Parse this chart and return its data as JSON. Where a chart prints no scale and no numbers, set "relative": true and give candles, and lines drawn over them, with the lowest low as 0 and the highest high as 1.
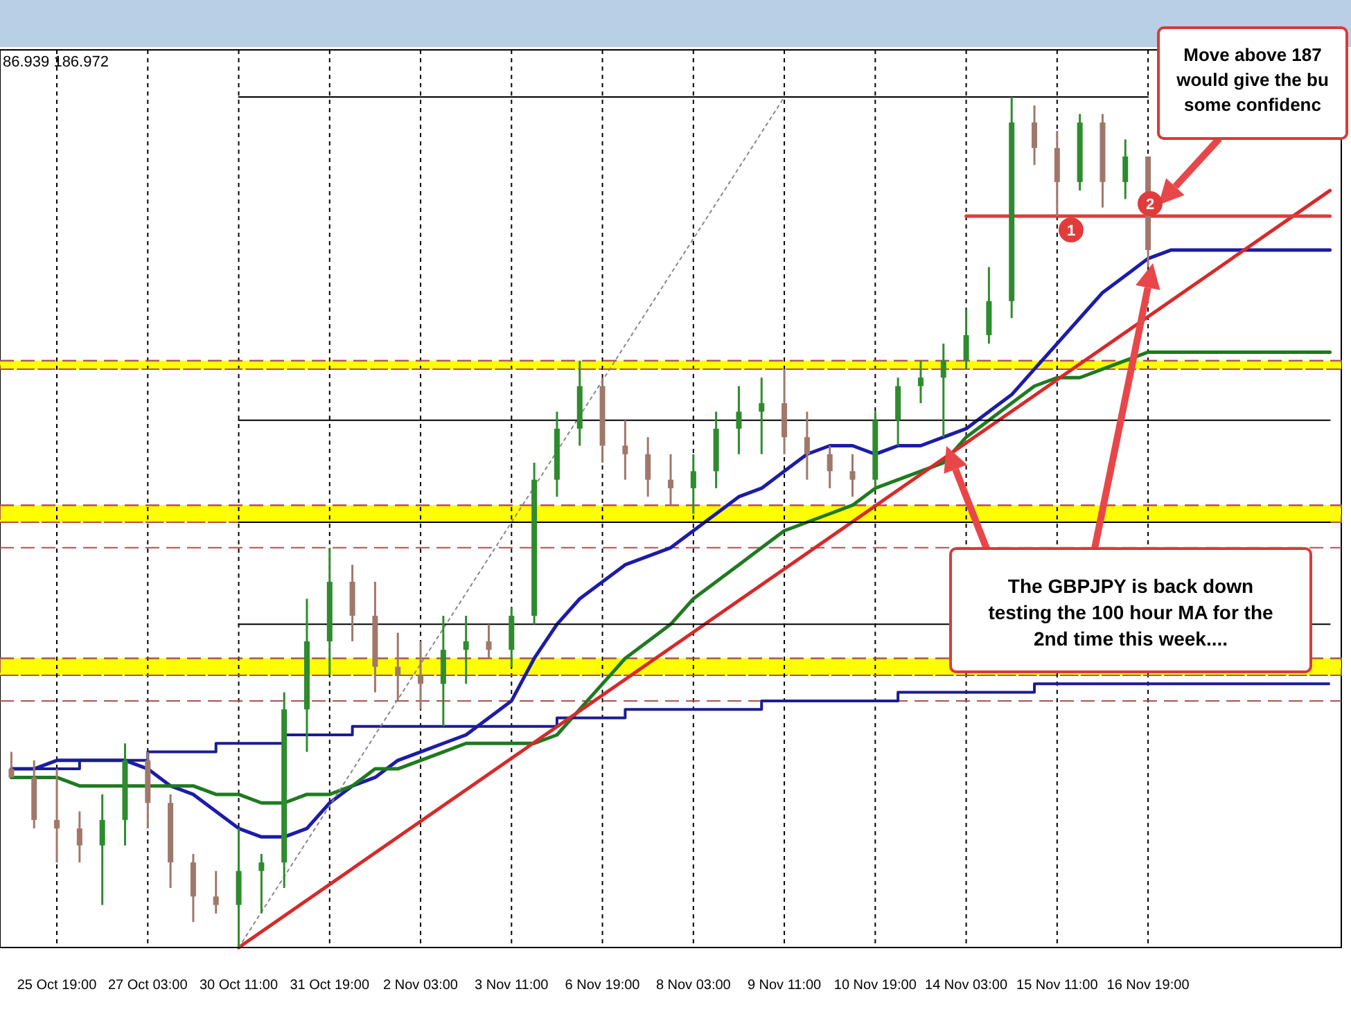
{
  "chart_data": {
    "type": "candlestick",
    "relative": true,
    "grid": "x",
    "categories": [
      null,
      null,
      "25 Oct 19:00",
      null,
      null,
      null,
      "27 Oct 03:00",
      null,
      null,
      null,
      "30 Oct 11:00",
      null,
      null,
      null,
      "31 Oct 19:00",
      null,
      null,
      null,
      "2 Nov 03:00",
      null,
      null,
      null,
      "3 Nov 11:00",
      null,
      null,
      null,
      "6 Nov 19:00",
      null,
      null,
      null,
      "8 Nov 03:00",
      null,
      null,
      null,
      "9 Nov 11:00",
      null,
      null,
      null,
      "10 Nov 19:00",
      null,
      null,
      null,
      "14 Nov 03:00",
      null,
      null,
      null,
      "15 Nov 11:00",
      null,
      null,
      null,
      "16 Nov 19:00",
      null,
      null,
      null,
      null,
      null,
      null,
      null,
      null
    ],
    "ohlc": [
      [
        0.21,
        0.23,
        0.2,
        0.2
      ],
      [
        0.2,
        0.22,
        0.14,
        0.15
      ],
      [
        0.15,
        0.21,
        0.1,
        0.14
      ],
      [
        0.14,
        0.16,
        0.1,
        0.12
      ],
      [
        0.12,
        0.18,
        0.05,
        0.15
      ],
      [
        0.15,
        0.24,
        0.12,
        0.22
      ],
      [
        0.22,
        0.23,
        0.14,
        0.17
      ],
      [
        0.17,
        0.18,
        0.07,
        0.1
      ],
      [
        0.1,
        0.11,
        0.03,
        0.06
      ],
      [
        0.06,
        0.09,
        0.04,
        0.05
      ],
      [
        0.05,
        0.14,
        0,
        0.09
      ],
      [
        0.09,
        0.11,
        0.04,
        0.1
      ],
      [
        0.1,
        0.3,
        0.07,
        0.28
      ],
      [
        0.28,
        0.41,
        0.23,
        0.36
      ],
      [
        0.36,
        0.47,
        0.32,
        0.43
      ],
      [
        0.43,
        0.45,
        0.36,
        0.39
      ],
      [
        0.39,
        0.43,
        0.3,
        0.33
      ],
      [
        0.33,
        0.37,
        0.29,
        0.32
      ],
      [
        0.32,
        0.36,
        0.28,
        0.31
      ],
      [
        0.31,
        0.39,
        0.26,
        0.35
      ],
      [
        0.35,
        0.39,
        0.31,
        0.36
      ],
      [
        0.36,
        0.38,
        0.34,
        0.35
      ],
      [
        0.35,
        0.4,
        0.33,
        0.39
      ],
      [
        0.39,
        0.57,
        0.38,
        0.55
      ],
      [
        0.55,
        0.63,
        0.53,
        0.61
      ],
      [
        0.61,
        0.69,
        0.59,
        0.66
      ],
      [
        0.66,
        0.67,
        0.57,
        0.59
      ],
      [
        0.59,
        0.62,
        0.55,
        0.58
      ],
      [
        0.58,
        0.6,
        0.53,
        0.55
      ],
      [
        0.55,
        0.58,
        0.52,
        0.54
      ],
      [
        0.54,
        0.58,
        0.51,
        0.56
      ],
      [
        0.56,
        0.63,
        0.54,
        0.61
      ],
      [
        0.61,
        0.66,
        0.58,
        0.63
      ],
      [
        0.63,
        0.67,
        0.58,
        0.64
      ],
      [
        0.64,
        0.68,
        0.58,
        0.6
      ],
      [
        0.6,
        0.63,
        0.55,
        0.58
      ],
      [
        0.58,
        0.59,
        0.54,
        0.56
      ],
      [
        0.56,
        0.58,
        0.53,
        0.55
      ],
      [
        0.55,
        0.63,
        0.54,
        0.62
      ],
      [
        0.62,
        0.67,
        0.59,
        0.66
      ],
      [
        0.66,
        0.69,
        0.64,
        0.67
      ],
      [
        0.67,
        0.71,
        0.6,
        0.69
      ],
      [
        0.69,
        0.75,
        0.68,
        0.72
      ],
      [
        0.72,
        0.8,
        0.71,
        0.76
      ],
      [
        0.76,
        1,
        0.74,
        0.97
      ],
      [
        0.97,
        0.99,
        0.92,
        0.94
      ],
      [
        0.94,
        0.96,
        0.86,
        0.9
      ],
      [
        0.9,
        0.98,
        0.89,
        0.97
      ],
      [
        0.97,
        0.98,
        0.87,
        0.9
      ],
      [
        0.9,
        0.95,
        0.88,
        0.93
      ],
      [
        0.93,
        0.93,
        0.8,
        0.82
      ],
      null,
      null,
      null,
      null,
      null,
      null,
      null,
      null
    ],
    "colors": [
      "#a0786b",
      "#a0786b",
      "#a0786b",
      "#a0786b",
      "#2e8b2e",
      "#2e8b2e",
      "#a0786b",
      "#a0786b",
      "#a0786b",
      "#a0786b",
      "#2e8b2e",
      "#2e8b2e",
      "#2e8b2e",
      "#2e8b2e",
      "#2e8b2e",
      "#a0786b",
      "#a0786b",
      "#a0786b",
      "#a0786b",
      "#2e8b2e",
      "#2e8b2e",
      "#a0786b",
      "#2e8b2e",
      "#2e8b2e",
      "#2e8b2e",
      "#2e8b2e",
      "#a0786b",
      "#a0786b",
      "#a0786b",
      "#a0786b",
      "#2e8b2e",
      "#2e8b2e",
      "#2e8b2e",
      "#2e8b2e",
      "#a0786b",
      "#a0786b",
      "#a0786b",
      "#a0786b",
      "#2e8b2e",
      "#2e8b2e",
      "#2e8b2e",
      "#2e8b2e",
      "#2e8b2e",
      "#2e8b2e",
      "#2e8b2e",
      "#a0786b",
      "#a0786b",
      "#2e8b2e",
      "#a0786b",
      "#2e8b2e",
      "#a0786b",
      null,
      null,
      null,
      null,
      null,
      null,
      null,
      null
    ],
    "series": [
      {
        "type": "line",
        "color": "#1c1ca8",
        "values": [
          0.21,
          0.21,
          0.22,
          0.22,
          0.22,
          0.22,
          0.21,
          0.19,
          0.18,
          0.16,
          0.14,
          0.13,
          0.13,
          0.14,
          0.17,
          0.19,
          0.2,
          0.22,
          0.23,
          0.24,
          0.25,
          0.27,
          0.29,
          0.34,
          0.38,
          0.41,
          0.43,
          0.45,
          0.46,
          0.47,
          0.49,
          0.51,
          0.53,
          0.54,
          0.56,
          0.58,
          0.59,
          0.59,
          0.58,
          0.59,
          0.59,
          0.6,
          0.61,
          0.63,
          0.65,
          0.68,
          0.71,
          0.74,
          0.77,
          0.79,
          0.81,
          0.82,
          0.82,
          0.82,
          0.82,
          0.82,
          0.82,
          0.82,
          0.82
        ]
      },
      {
        "type": "line",
        "color": "#1f7a1f",
        "values": [
          0.2,
          0.2,
          0.2,
          0.19,
          0.19,
          0.19,
          0.19,
          0.19,
          0.19,
          0.18,
          0.18,
          0.17,
          0.17,
          0.18,
          0.18,
          0.19,
          0.21,
          0.21,
          0.22,
          0.23,
          0.24,
          0.24,
          0.24,
          0.24,
          0.25,
          0.28,
          0.31,
          0.34,
          0.36,
          0.38,
          0.41,
          0.43,
          0.45,
          0.47,
          0.49,
          0.5,
          0.51,
          0.52,
          0.54,
          0.55,
          0.56,
          0.57,
          0.6,
          0.62,
          0.64,
          0.66,
          0.67,
          0.67,
          0.68,
          0.69,
          0.7,
          0.7,
          0.7,
          0.7,
          0.7,
          0.7,
          0.7,
          0.7,
          0.7
        ]
      },
      {
        "type": "step",
        "color": "#1c1c90",
        "values": [
          0.21,
          0.21,
          0.21,
          0.22,
          0.22,
          0.22,
          0.23,
          0.23,
          0.23,
          0.24,
          0.24,
          0.24,
          0.25,
          0.25,
          0.25,
          0.26,
          0.26,
          0.26,
          0.26,
          0.26,
          0.26,
          0.26,
          0.26,
          0.26,
          0.27,
          0.27,
          0.27,
          0.28,
          0.28,
          0.28,
          0.28,
          0.28,
          0.28,
          0.29,
          0.29,
          0.29,
          0.29,
          0.29,
          0.29,
          0.3,
          0.3,
          0.3,
          0.3,
          0.3,
          0.3,
          0.31,
          0.31,
          0.31,
          0.31,
          0.31,
          0.31,
          0.31,
          0.31,
          0.31,
          0.31,
          0.31,
          0.31,
          0.31,
          0.31
        ]
      },
      {
        "type": "line",
        "color": "#d62a2a",
        "values": [
          null,
          null,
          null,
          null,
          null,
          null,
          null,
          null,
          null,
          null,
          0,
          null,
          null,
          null,
          null,
          null,
          null,
          null,
          null,
          null,
          null,
          null,
          null,
          null,
          null,
          null,
          null,
          null,
          null,
          null,
          null,
          null,
          null,
          null,
          null,
          null,
          null,
          null,
          null,
          null,
          null,
          null,
          null,
          null,
          null,
          null,
          null,
          null,
          null,
          null,
          null,
          null,
          null,
          null,
          null,
          null,
          null,
          null,
          0.89
        ]
      },
      {
        "type": "line",
        "color": "#e03c3c",
        "values": [
          null,
          null,
          null,
          null,
          null,
          null,
          null,
          null,
          null,
          null,
          null,
          null,
          null,
          null,
          null,
          null,
          null,
          null,
          null,
          null,
          null,
          null,
          null,
          null,
          null,
          null,
          null,
          null,
          null,
          null,
          null,
          null,
          null,
          null,
          null,
          null,
          null,
          null,
          null,
          null,
          null,
          null,
          0.86,
          null,
          null,
          null,
          null,
          null,
          null,
          null,
          null,
          null,
          null,
          null,
          null,
          null,
          null,
          null,
          0.86
        ]
      },
      {
        "type": "line",
        "color": "#888888",
        "line_style": "dotted",
        "values": [
          null,
          null,
          null,
          null,
          null,
          null,
          null,
          null,
          null,
          null,
          0,
          null,
          null,
          null,
          null,
          null,
          null,
          null,
          null,
          null,
          null,
          null,
          null,
          null,
          null,
          null,
          null,
          null,
          null,
          null,
          null,
          null,
          null,
          null,
          1,
          null,
          null,
          null,
          null,
          null,
          null,
          null,
          null,
          null,
          null,
          null,
          null,
          null,
          null,
          null,
          null,
          null,
          null,
          null,
          null,
          null,
          null,
          null,
          null
        ]
      },
      {
        "type": "line",
        "color": "#000000",
        "values": [
          null,
          null,
          null,
          null,
          null,
          null,
          null,
          null,
          null,
          null,
          1,
          null,
          null,
          null,
          null,
          null,
          null,
          null,
          null,
          null,
          null,
          null,
          null,
          null,
          null,
          null,
          null,
          null,
          null,
          null,
          null,
          null,
          null,
          null,
          null,
          null,
          null,
          null,
          null,
          null,
          null,
          null,
          null,
          null,
          null,
          null,
          null,
          null,
          null,
          null,
          1,
          null,
          null,
          null,
          null,
          null,
          null,
          null,
          null
        ]
      },
      {
        "type": "line",
        "color": "#000000",
        "values": [
          null,
          null,
          null,
          null,
          null,
          null,
          null,
          null,
          null,
          null,
          0.62,
          null,
          null,
          null,
          null,
          null,
          null,
          null,
          null,
          null,
          null,
          null,
          null,
          null,
          null,
          null,
          null,
          null,
          null,
          null,
          null,
          null,
          null,
          null,
          null,
          null,
          null,
          null,
          null,
          null,
          null,
          null,
          null,
          null,
          null,
          null,
          null,
          null,
          null,
          null,
          null,
          null,
          null,
          null,
          null,
          null,
          null,
          null,
          0.62
        ]
      },
      {
        "type": "line",
        "color": "#000000",
        "values": [
          null,
          null,
          null,
          null,
          null,
          null,
          null,
          null,
          null,
          null,
          0.5,
          null,
          null,
          null,
          null,
          null,
          null,
          null,
          null,
          null,
          null,
          null,
          null,
          null,
          null,
          null,
          null,
          null,
          null,
          null,
          null,
          null,
          null,
          null,
          null,
          null,
          null,
          null,
          null,
          null,
          null,
          null,
          null,
          null,
          null,
          null,
          null,
          null,
          null,
          null,
          null,
          null,
          null,
          null,
          null,
          null,
          null,
          null,
          0.5
        ]
      },
      {
        "type": "line",
        "color": "#000000",
        "values": [
          null,
          null,
          null,
          null,
          null,
          null,
          null,
          null,
          null,
          null,
          0.38,
          null,
          null,
          null,
          null,
          null,
          null,
          null,
          null,
          null,
          null,
          null,
          null,
          null,
          null,
          null,
          null,
          null,
          null,
          null,
          null,
          null,
          null,
          null,
          null,
          null,
          null,
          null,
          null,
          null,
          null,
          null,
          null,
          null,
          null,
          null,
          null,
          null,
          null,
          null,
          null,
          null,
          null,
          null,
          null,
          null,
          null,
          null,
          0.38
        ]
      }
    ],
    "bands": [
      {
        "axis": "y",
        "from": 0.68,
        "to": 0.69,
        "color": "#ffff00"
      },
      {
        "axis": "y",
        "from": 0.5,
        "to": 0.52,
        "color": "#ffff00"
      },
      {
        "axis": "y",
        "from": 0.32,
        "to": 0.34,
        "color": "#ffff00"
      }
    ],
    "ref_lines": [
      {
        "axis": "y",
        "value": 0.69,
        "color": "#b05050",
        "line_style": "dashed"
      },
      {
        "axis": "y",
        "value": 0.68,
        "color": "#b05050",
        "line_style": "dashed"
      },
      {
        "axis": "y",
        "value": 0.52,
        "color": "#b05050",
        "line_style": "dashed"
      },
      {
        "axis": "y",
        "value": 0.5,
        "color": "#b05050",
        "line_style": "dashed"
      },
      {
        "axis": "y",
        "value": 0.47,
        "color": "#b05050",
        "line_style": "dashed"
      },
      {
        "axis": "y",
        "value": 0.34,
        "color": "#b05050",
        "line_style": "dashed"
      },
      {
        "axis": "y",
        "value": 0.32,
        "color": "#b05050",
        "line_style": "dashed"
      },
      {
        "axis": "y",
        "value": 0.29,
        "color": "#b05050",
        "line_style": "dashed"
      }
    ],
    "annotations": [
      "86.939 186.972",
      "Move above 187\nwould give the bu\nsome confidenc",
      "The GBPJPY is back down\ntesting the 100 hour MA for the\n2nd time this week....",
      "1",
      "2"
    ]
  }
}
